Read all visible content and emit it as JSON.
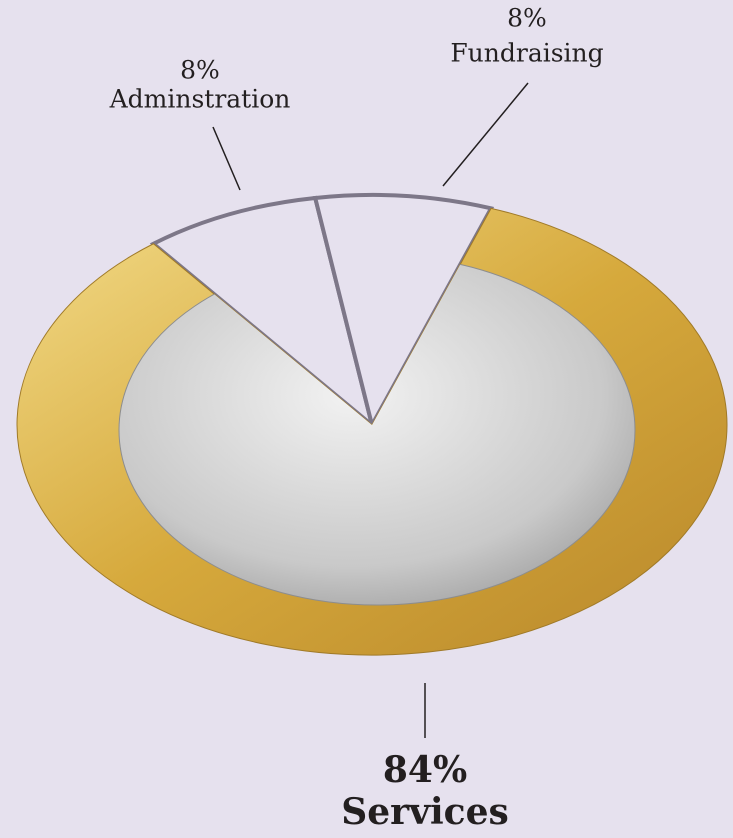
{
  "chart_data": {
    "type": "pie",
    "categories": [
      "Adminstration",
      "Fundraising",
      "Services"
    ],
    "values": [
      8,
      8,
      84
    ],
    "value_labels": [
      "8%",
      "8%",
      "84%"
    ],
    "colors": [
      "#e6e1ee",
      "#e6e1ee",
      "#d8b04a"
    ]
  }
}
